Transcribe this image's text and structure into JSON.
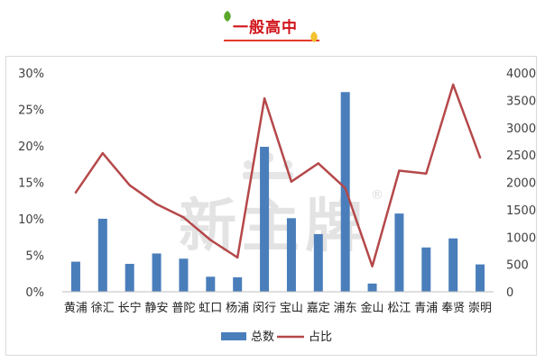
{
  "header": {
    "title": "一般高中",
    "accent_color": "#d0141a",
    "leaf_colors": [
      "#5aa82a",
      "#f2c230"
    ]
  },
  "watermark": {
    "text": "新主牌",
    "registered": "®"
  },
  "chart_data": {
    "type": "bar+line",
    "categories": [
      "黄浦",
      "徐汇",
      "长宁",
      "静安",
      "普陀",
      "虹口",
      "杨浦",
      "闵行",
      "宝山",
      "嘉定",
      "浦东",
      "金山",
      "松江",
      "青浦",
      "奉贤",
      "崇明"
    ],
    "series": [
      {
        "name": "总数",
        "type": "bar",
        "axis": "right",
        "color": "#4a7ebb",
        "values": [
          550,
          1335,
          510,
          700,
          605,
          275,
          265,
          2650,
          1345,
          1055,
          3650,
          150,
          1430,
          810,
          975,
          500
        ]
      },
      {
        "name": "占比",
        "type": "line",
        "axis": "left",
        "color": "#b5484a",
        "values": [
          13.6,
          19.0,
          14.6,
          12.0,
          10.2,
          7.1,
          4.7,
          26.5,
          15.1,
          17.6,
          14.2,
          3.5,
          16.6,
          16.2,
          28.4,
          18.4
        ]
      }
    ],
    "y_left": {
      "min": 0,
      "max": 30,
      "ticks": [
        "0%",
        "5%",
        "10%",
        "15%",
        "20%",
        "25%",
        "30%"
      ]
    },
    "y_right": {
      "min": 0,
      "max": 4000,
      "ticks": [
        "0",
        "500",
        "1000",
        "1500",
        "2000",
        "2500",
        "3000",
        "3500",
        "4000"
      ]
    },
    "grid": false,
    "legend": {
      "position": "bottom",
      "entries": [
        "总数",
        "占比"
      ]
    }
  }
}
